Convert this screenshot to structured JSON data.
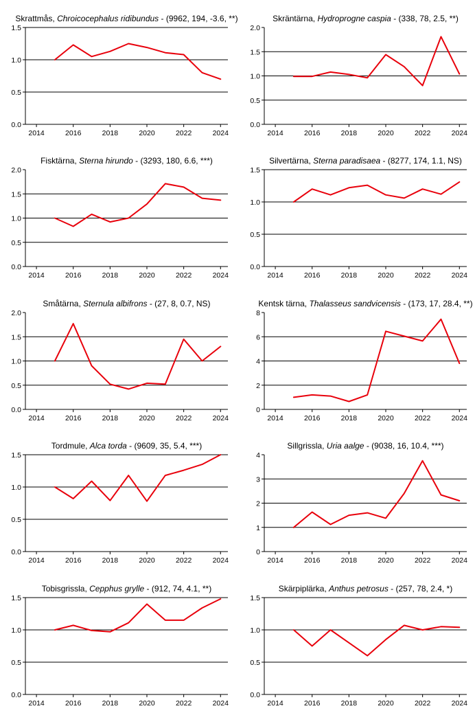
{
  "colors": {
    "line": "#e8000b",
    "grid": "#000000",
    "axis": "#000000"
  },
  "chart_data": [
    {
      "type": "line",
      "name": "Skrattmås",
      "latin": "Chroicocephalus ridibundus",
      "stats": " - (9962, 194, -3.6, **)",
      "x": [
        2015,
        2016,
        2017,
        2018,
        2019,
        2020,
        2021,
        2022,
        2023,
        2024
      ],
      "values": [
        1.0,
        1.23,
        1.05,
        1.13,
        1.25,
        1.19,
        1.11,
        1.08,
        0.8,
        0.7
      ],
      "ylim": [
        0,
        1.5
      ],
      "yticks": [
        0.0,
        0.5,
        1.0,
        1.5
      ],
      "ytick_labels": [
        "0.0",
        "0.5",
        "1.0",
        "1.5"
      ],
      "gridlines": [
        0.5,
        1.0,
        1.5
      ],
      "xlim": [
        2013.4,
        2024.4
      ],
      "xticks": [
        2014,
        2016,
        2018,
        2020,
        2022,
        2024
      ],
      "xtick_labels": [
        "2014",
        "2016",
        "2018",
        "2020",
        "2022",
        "2024"
      ]
    },
    {
      "type": "line",
      "name": "Skräntärna",
      "latin": "Hydroprogne caspia",
      "stats": " - (338, 78, 2.5, **)",
      "x": [
        2015,
        2016,
        2017,
        2018,
        2019,
        2020,
        2021,
        2022,
        2023,
        2024
      ],
      "values": [
        0.99,
        0.99,
        1.08,
        1.03,
        0.96,
        1.44,
        1.19,
        0.8,
        1.81,
        1.04
      ],
      "ylim": [
        0,
        2.0
      ],
      "yticks": [
        0.0,
        0.5,
        1.0,
        1.5,
        2.0
      ],
      "ytick_labels": [
        "0.0",
        "0.5",
        "1.0",
        "1.5",
        "2.0"
      ],
      "gridlines": [
        0.5,
        1.0,
        1.5
      ],
      "xlim": [
        2013.4,
        2024.4
      ],
      "xticks": [
        2014,
        2016,
        2018,
        2020,
        2022,
        2024
      ],
      "xtick_labels": [
        "2014",
        "2016",
        "2018",
        "2020",
        "2022",
        "2024"
      ]
    },
    {
      "type": "line",
      "name": "Fisktärna",
      "latin": "Sterna hirundo",
      "stats": " - (3293, 180, 6.6, ***)",
      "x": [
        2015,
        2016,
        2017,
        2018,
        2019,
        2020,
        2021,
        2022,
        2023,
        2024
      ],
      "values": [
        1.0,
        0.83,
        1.08,
        0.92,
        1.0,
        1.29,
        1.71,
        1.64,
        1.41,
        1.37
      ],
      "ylim": [
        0,
        2.0
      ],
      "yticks": [
        0.0,
        0.5,
        1.0,
        1.5,
        2.0
      ],
      "ytick_labels": [
        "0.0",
        "0.5",
        "1.0",
        "1.5",
        "2.0"
      ],
      "gridlines": [
        0.5,
        1.0,
        1.5
      ],
      "xlim": [
        2013.4,
        2024.4
      ],
      "xticks": [
        2014,
        2016,
        2018,
        2020,
        2022,
        2024
      ],
      "xtick_labels": [
        "2014",
        "2016",
        "2018",
        "2020",
        "2022",
        "2024"
      ]
    },
    {
      "type": "line",
      "name": "Silvertärna",
      "latin": "Sterna paradisaea",
      "stats": " - (8277, 174, 1.1, NS)",
      "x": [
        2015,
        2016,
        2017,
        2018,
        2019,
        2020,
        2021,
        2022,
        2023,
        2024
      ],
      "values": [
        1.0,
        1.2,
        1.11,
        1.22,
        1.26,
        1.11,
        1.06,
        1.2,
        1.12,
        1.31
      ],
      "ylim": [
        0,
        1.5
      ],
      "yticks": [
        0.0,
        0.5,
        1.0,
        1.5
      ],
      "ytick_labels": [
        "0.0",
        "0.5",
        "1.0",
        "1.5"
      ],
      "gridlines": [
        0.5,
        1.0,
        1.5
      ],
      "xlim": [
        2013.4,
        2024.4
      ],
      "xticks": [
        2014,
        2016,
        2018,
        2020,
        2022,
        2024
      ],
      "xtick_labels": [
        "2014",
        "2016",
        "2018",
        "2020",
        "2022",
        "2024"
      ]
    },
    {
      "type": "line",
      "name": "Småtärna",
      "latin": "Sternula albifrons",
      "stats": " - (27, 8, 0.7, NS)",
      "x": [
        2015,
        2016,
        2017,
        2018,
        2019,
        2020,
        2021,
        2022,
        2023,
        2024
      ],
      "values": [
        1.0,
        1.77,
        0.9,
        0.52,
        0.42,
        0.54,
        0.52,
        1.45,
        1.0,
        1.3
      ],
      "ylim": [
        0,
        2.0
      ],
      "yticks": [
        0.0,
        0.5,
        1.0,
        1.5,
        2.0
      ],
      "ytick_labels": [
        "0.0",
        "0.5",
        "1.0",
        "1.5",
        "2.0"
      ],
      "gridlines": [
        0.5,
        1.0,
        1.5
      ],
      "xlim": [
        2013.4,
        2024.4
      ],
      "xticks": [
        2014,
        2016,
        2018,
        2020,
        2022,
        2024
      ],
      "xtick_labels": [
        "2014",
        "2016",
        "2018",
        "2020",
        "2022",
        "2024"
      ]
    },
    {
      "type": "line",
      "name": "Kentsk tärna",
      "latin": "Thalasseus sandvicensis",
      "stats": " - (173, 17, 28.4, **)",
      "x": [
        2015,
        2016,
        2017,
        2018,
        2019,
        2020,
        2021,
        2022,
        2023,
        2024
      ],
      "values": [
        1.0,
        1.2,
        1.1,
        0.65,
        1.2,
        6.45,
        6.05,
        5.65,
        7.45,
        3.8
      ],
      "ylim": [
        0,
        8
      ],
      "yticks": [
        0,
        2,
        4,
        6,
        8
      ],
      "ytick_labels": [
        "0",
        "2",
        "4",
        "6",
        "8"
      ],
      "gridlines": [
        2,
        4,
        6
      ],
      "xlim": [
        2013.4,
        2024.4
      ],
      "xticks": [
        2014,
        2016,
        2018,
        2020,
        2022,
        2024
      ],
      "xtick_labels": [
        "2014",
        "2016",
        "2018",
        "2020",
        "2022",
        "2024"
      ]
    },
    {
      "type": "line",
      "name": "Tordmule",
      "latin": "Alca torda",
      "stats": " - (9609, 35, 5.4, ***)",
      "x": [
        2015,
        2016,
        2017,
        2018,
        2019,
        2020,
        2021,
        2022,
        2023,
        2024
      ],
      "values": [
        1.0,
        0.82,
        1.09,
        0.79,
        1.18,
        0.78,
        1.18,
        1.26,
        1.35,
        1.5
      ],
      "ylim": [
        0,
        1.5
      ],
      "yticks": [
        0.0,
        0.5,
        1.0,
        1.5
      ],
      "ytick_labels": [
        "0.0",
        "0.5",
        "1.0",
        "1.5"
      ],
      "gridlines": [
        0.5,
        1.0,
        1.5
      ],
      "xlim": [
        2013.4,
        2024.4
      ],
      "xticks": [
        2014,
        2016,
        2018,
        2020,
        2022,
        2024
      ],
      "xtick_labels": [
        "2014",
        "2016",
        "2018",
        "2020",
        "2022",
        "2024"
      ]
    },
    {
      "type": "line",
      "name": "Sillgrissla",
      "latin": "Uria aalge",
      "stats": " - (9038, 16, 10.4, ***)",
      "x": [
        2015,
        2016,
        2017,
        2018,
        2019,
        2020,
        2021,
        2022,
        2023,
        2024
      ],
      "values": [
        1.0,
        1.63,
        1.12,
        1.5,
        1.6,
        1.38,
        2.4,
        3.75,
        2.34,
        2.1
      ],
      "ylim": [
        0,
        4
      ],
      "yticks": [
        0,
        1,
        2,
        3,
        4
      ],
      "ytick_labels": [
        "0",
        "1",
        "2",
        "3",
        "4"
      ],
      "gridlines": [
        1,
        2,
        3
      ],
      "xlim": [
        2013.4,
        2024.4
      ],
      "xticks": [
        2014,
        2016,
        2018,
        2020,
        2022,
        2024
      ],
      "xtick_labels": [
        "2014",
        "2016",
        "2018",
        "2020",
        "2022",
        "2024"
      ]
    },
    {
      "type": "line",
      "name": "Tobisgrissla",
      "latin": "Cepphus grylle",
      "stats": " - (912, 74, 4.1, **)",
      "x": [
        2015,
        2016,
        2017,
        2018,
        2019,
        2020,
        2021,
        2022,
        2023,
        2024
      ],
      "values": [
        1.0,
        1.07,
        0.99,
        0.97,
        1.11,
        1.4,
        1.15,
        1.15,
        1.34,
        1.48
      ],
      "ylim": [
        0,
        1.5
      ],
      "yticks": [
        0.0,
        0.5,
        1.0,
        1.5
      ],
      "ytick_labels": [
        "0.0",
        "0.5",
        "1.0",
        "1.5"
      ],
      "gridlines": [
        0.5,
        1.0,
        1.5
      ],
      "xlim": [
        2013.4,
        2024.4
      ],
      "xticks": [
        2014,
        2016,
        2018,
        2020,
        2022,
        2024
      ],
      "xtick_labels": [
        "2014",
        "2016",
        "2018",
        "2020",
        "2022",
        "2024"
      ]
    },
    {
      "type": "line",
      "name": "Skärpiplärka",
      "latin": "Anthus petrosus",
      "stats": " - (257, 78, 2.4, *)",
      "x": [
        2015,
        2016,
        2017,
        2018,
        2019,
        2020,
        2021,
        2022,
        2023,
        2024
      ],
      "values": [
        1.0,
        0.75,
        1.0,
        0.8,
        0.6,
        0.85,
        1.07,
        1.0,
        1.05,
        1.04
      ],
      "ylim": [
        0,
        1.5
      ],
      "yticks": [
        0.0,
        0.5,
        1.0,
        1.5
      ],
      "ytick_labels": [
        "0.0",
        "0.5",
        "1.0",
        "1.5"
      ],
      "gridlines": [
        0.5,
        1.0,
        1.5
      ],
      "xlim": [
        2013.4,
        2024.4
      ],
      "xticks": [
        2014,
        2016,
        2018,
        2020,
        2022,
        2024
      ],
      "xtick_labels": [
        "2014",
        "2016",
        "2018",
        "2020",
        "2022",
        "2024"
      ]
    }
  ]
}
